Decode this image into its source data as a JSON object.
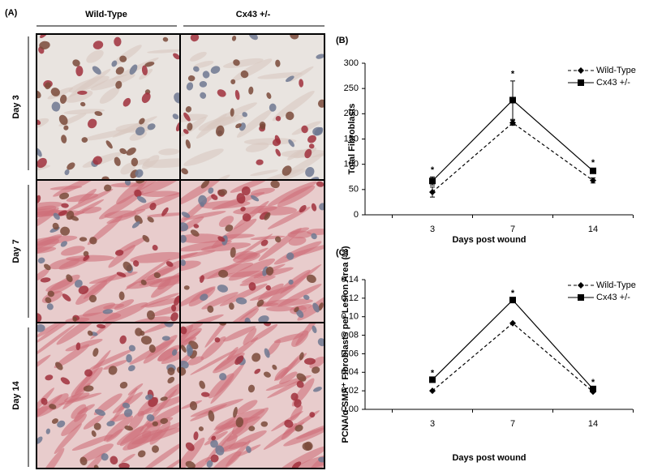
{
  "panel_a": {
    "label": "(A)",
    "columns": [
      "Wild-Type",
      "Cx43 +/-"
    ],
    "rows": [
      "Day 3",
      "Day 7",
      "Day 14"
    ]
  },
  "chart_data": [
    {
      "type": "line",
      "panel_label": "(B)",
      "y_label": "Total Fibroblasts",
      "x_label": "Days post wound",
      "categories": [
        "3",
        "7",
        "14"
      ],
      "series": [
        {
          "name": "Wild-Type",
          "color": "#000000",
          "line_style": "dashed",
          "marker": "diamond",
          "values": [
            45,
            182,
            68
          ],
          "errors": [
            10,
            5,
            5
          ]
        },
        {
          "name": "Cx43 +/-",
          "color": "#000000",
          "line_style": "solid",
          "marker": "square",
          "values": [
            67,
            227,
            87
          ],
          "errors": [
            8,
            38,
            3
          ]
        }
      ],
      "annotations": [
        "*",
        "*",
        "*"
      ],
      "ylim": [
        0,
        300
      ],
      "yticks": [
        0,
        50,
        100,
        150,
        200,
        250,
        300
      ],
      "grid": false
    },
    {
      "type": "line",
      "panel_label": "(C)",
      "y_label": "PCNA/α-SMA⁺ Fibroblasts per Lesion Area (%)",
      "x_label": "Days post wound",
      "categories": [
        "3",
        "7",
        "14"
      ],
      "series": [
        {
          "name": "Wild-Type",
          "color": "#000000",
          "line_style": "dashed",
          "marker": "diamond",
          "values": [
            0.02,
            0.093,
            0.019
          ]
        },
        {
          "name": "Cx43 +/-",
          "color": "#000000",
          "line_style": "solid",
          "marker": "square",
          "values": [
            0.032,
            0.118,
            0.022
          ]
        }
      ],
      "annotations": [
        "*",
        "*",
        "*"
      ],
      "ylim": [
        0,
        0.14
      ],
      "yticks": [
        {
          "value": 0,
          "label": "0,00"
        },
        {
          "value": 0.02,
          "label": "0,02"
        },
        {
          "value": 0.04,
          "label": "0,04"
        },
        {
          "value": 0.06,
          "label": "0,06"
        },
        {
          "value": 0.08,
          "label": "0,08"
        },
        {
          "value": 0.1,
          "label": "0,10"
        },
        {
          "value": 0.12,
          "label": "0,12"
        },
        {
          "value": 0.14,
          "label": "0,14"
        }
      ],
      "grid": false
    }
  ]
}
